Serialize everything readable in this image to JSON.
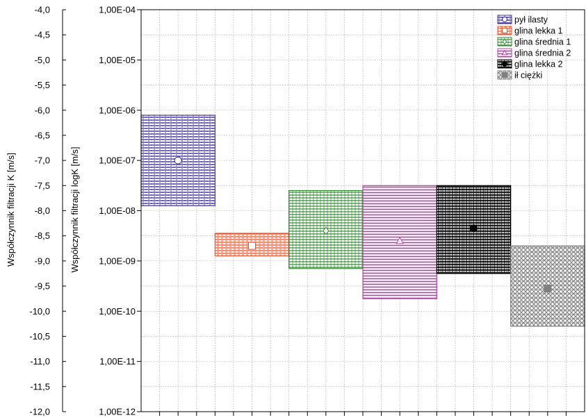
{
  "chart_data": {
    "type": "range-bar",
    "y_left_label": "Współczynnik filtracji K [m/s]",
    "y_right_label": "Współczynnik filtracji logK [m/s]",
    "ylim": [
      -12.0,
      -4.0
    ],
    "left_ticks": [
      "-4,0",
      "-4,5",
      "-5,0",
      "-5,5",
      "-6,0",
      "-6,5",
      "-7,0",
      "-7,5",
      "-8,0",
      "-8,5",
      "-9,0",
      "-9,5",
      "-10,0",
      "-10,5",
      "-11,0",
      "-11,5",
      "-12,0"
    ],
    "right_ticks": [
      "1,00E-04",
      "1,00E-05",
      "1,00E-06",
      "1,00E-07",
      "1,00E-08",
      "1,00E-09",
      "1,00E-10",
      "1,00E-11",
      "1,00E-12"
    ],
    "grid": true,
    "legend_position": "top-right",
    "series": [
      {
        "name": "pył ilasty",
        "low": -7.9,
        "high": -6.1,
        "median": -7.0,
        "color": "#3d2e9e",
        "marker": "circle"
      },
      {
        "name": "glina lekka 1",
        "low": -8.9,
        "high": -8.45,
        "median": -8.7,
        "color": "#e8542b",
        "marker": "square"
      },
      {
        "name": "glina średnia 1",
        "low": -9.15,
        "high": -7.6,
        "median": -8.4,
        "color": "#2f8a2f",
        "marker": "diamond"
      },
      {
        "name": "glina średnia 2",
        "low": -9.75,
        "high": -7.5,
        "median": -8.6,
        "color": "#b43fa8",
        "marker": "triangle"
      },
      {
        "name": "glina lekka 2",
        "low": -9.25,
        "high": -7.5,
        "median": -8.35,
        "color": "#000000",
        "marker": "circle-filled"
      },
      {
        "name": "ił ciężki",
        "low": -10.3,
        "high": -8.7,
        "median": -9.55,
        "color": "#808080",
        "marker": "square-filled"
      }
    ]
  }
}
